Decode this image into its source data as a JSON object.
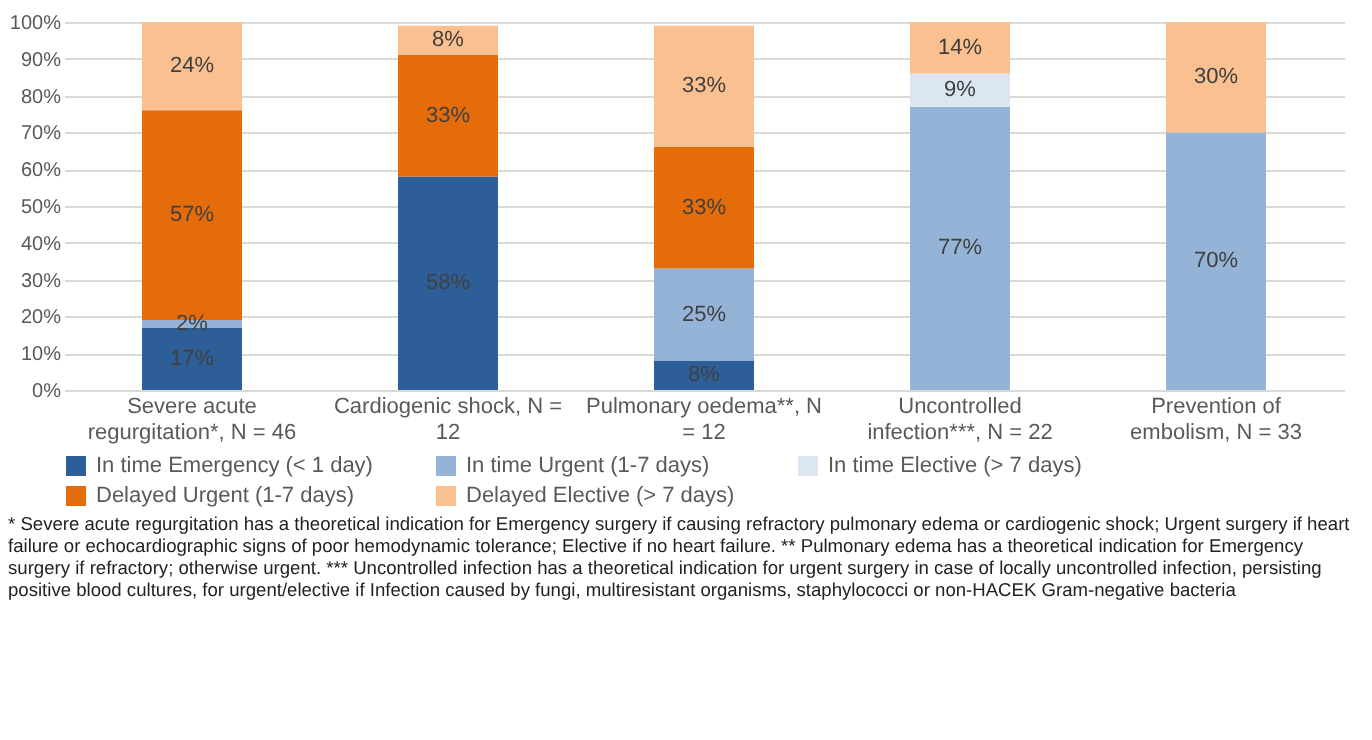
{
  "chart_data": {
    "type": "bar",
    "stacked": true,
    "categories": [
      "Severe acute regurgitation*, N = 46",
      "Cardiogenic shock, N = 12",
      "Pulmonary oedema**, N = 12",
      "Uncontrolled infection***, N = 22",
      "Prevention of embolism, N = 33"
    ],
    "series": [
      {
        "name": "In time Emergency (< 1 day)",
        "color": "#2e5e97",
        "values": [
          17,
          58,
          8,
          null,
          null
        ],
        "value_labels": [
          "17%",
          "58%",
          "8%",
          null,
          null
        ]
      },
      {
        "name": "In time Urgent (1-7 days)",
        "color": "#95b3d7",
        "values": [
          2,
          null,
          25,
          77,
          70
        ],
        "value_labels": [
          "2%",
          null,
          "25%",
          "77%",
          "70%"
        ]
      },
      {
        "name": "In time Elective (> 7 days)",
        "color": "#dce6f2",
        "values": [
          null,
          null,
          null,
          9,
          null
        ],
        "value_labels": [
          null,
          null,
          null,
          "9%",
          null
        ]
      },
      {
        "name": "Delayed Urgent (1-7 days)",
        "color": "#e46c0a",
        "values": [
          57,
          33,
          33,
          null,
          null
        ],
        "value_labels": [
          "57%",
          "33%",
          "33%",
          null,
          null
        ]
      },
      {
        "name": "Delayed Elective (> 7 days)",
        "color": "#fac090",
        "values": [
          24,
          8,
          33,
          14,
          30
        ],
        "value_labels": [
          "24%",
          "8%",
          "33%",
          "14%",
          "30%"
        ]
      }
    ],
    "ylim": [
      0,
      100
    ],
    "yticks": [
      {
        "value": 0,
        "label": "0%"
      },
      {
        "value": 10,
        "label": "10%"
      },
      {
        "value": 20,
        "label": "20%"
      },
      {
        "value": 30,
        "label": "30%"
      },
      {
        "value": 40,
        "label": "40%"
      },
      {
        "value": 50,
        "label": "50%"
      },
      {
        "value": 60,
        "label": "60%"
      },
      {
        "value": 70,
        "label": "70%"
      },
      {
        "value": 80,
        "label": "80%"
      },
      {
        "value": 90,
        "label": "90%"
      },
      {
        "value": 100,
        "label": "100%"
      }
    ],
    "grid": "y",
    "legend": "bottom",
    "annotations": [
      "* Severe acute regurgitation has a theoretical indication for Emergency surgery if causing refractory pulmonary edema or cardiogenic shock; Urgent surgery if heart failure or echocardiographic signs of poor hemodynamic tolerance; Elective if no heart failure. ** Pulmonary edema has a theoretical indication for Emergency surgery if refractory; otherwise urgent. *** Uncontrolled infection has a theoretical indication for urgent surgery in case of locally uncontrolled infection, persisting positive blood cultures, for urgent/elective if Infection caused by fungi, multiresistant organisms, staphylococci or non-HACEK Gram-negative bacteria"
    ]
  }
}
